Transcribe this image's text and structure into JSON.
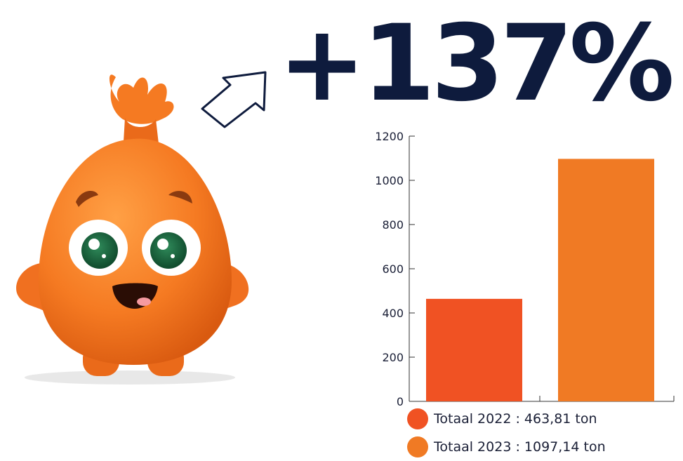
{
  "headline": {
    "text": "+137%"
  },
  "colors": {
    "navy": "#0e1b3d",
    "bar_2022": "#f05223",
    "bar_2023": "#f07a24",
    "mascot_body": "#f57a22"
  },
  "icons": {
    "arrow": "arrow-up-right-icon",
    "mascot": "orange-bag-mascot"
  },
  "chart_data": {
    "type": "bar",
    "categories": [
      "Totaal 2022",
      "Totaal 2023"
    ],
    "values": [
      463.81,
      1097.14
    ],
    "ylim": [
      0,
      1200
    ],
    "yticks": [
      "0",
      "200",
      "400",
      "600",
      "800",
      "1000",
      "1200"
    ],
    "grid": false,
    "legend_position": "bottom",
    "legend": [
      {
        "label": "Totaal 2022 : 463,81 ton",
        "color": "#f05223"
      },
      {
        "label": "Totaal 2023 : 1097,14 ton",
        "color": "#f07a24"
      }
    ]
  }
}
